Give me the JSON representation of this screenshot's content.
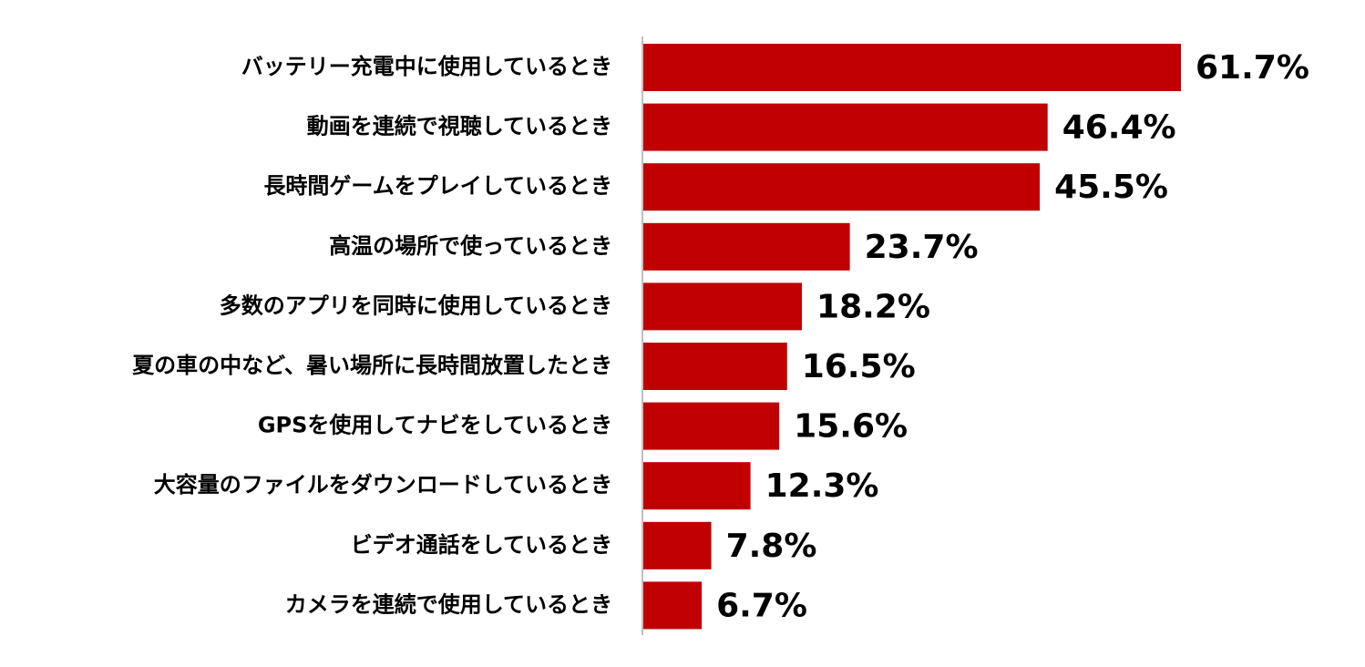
{
  "chart_data": {
    "type": "bar",
    "orientation": "horizontal",
    "color": "#c00000",
    "categories": [
      "バッテリー充電中に使用しているとき",
      "動画を連続で視聴しているとき",
      "長時間ゲームをプレイしているとき",
      "高温の場所で使っているとき",
      "多数のアプリを同時に使用しているとき",
      "夏の車の中など、暑い場所に長時間放置したとき",
      "GPSを使用してナビをしているとき",
      "大容量のファイルをダウンロードしているとき",
      "ビデオ通話をしているとき",
      "カメラを連続で使用しているとき"
    ],
    "values": [
      61.7,
      46.4,
      45.5,
      23.7,
      18.2,
      16.5,
      15.6,
      12.3,
      7.8,
      6.7
    ],
    "value_labels": [
      "61.7%",
      "46.4%",
      "45.5%",
      "23.7%",
      "18.2%",
      "16.5%",
      "15.6%",
      "12.3%",
      "7.8%",
      "6.7%"
    ]
  }
}
